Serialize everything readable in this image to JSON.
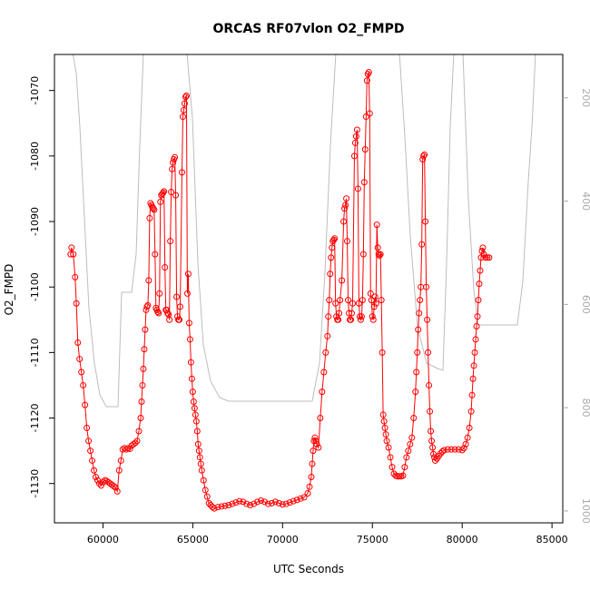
{
  "chart_data": {
    "type": "scatter",
    "title": "ORCAS RF07vlon O2_FMPD",
    "xlabel": "UTC Seconds",
    "ylabel": "O2_FMPD",
    "xlim": [
      57300,
      85600
    ],
    "ylim": [
      -1136,
      -1064.5
    ],
    "x_ticks": [
      60000,
      65000,
      70000,
      75000,
      80000,
      85000
    ],
    "x_tick_labels": [
      "60000",
      "65000",
      "70000",
      "75000",
      "80000",
      "85000"
    ],
    "y_ticks": [
      -1070,
      -1080,
      -1090,
      -1100,
      -1110,
      -1120,
      -1130
    ],
    "y_tick_labels": [
      "-1070",
      "-1080",
      "-1090",
      "-1100",
      "-1110",
      "-1120",
      "-1130"
    ],
    "right_axis": {
      "color": "#aaaaaa",
      "lim": [
        1023,
        116
      ],
      "ticks": [
        200,
        400,
        600,
        800,
        1000
      ],
      "tick_labels": [
        "200",
        "400",
        "600",
        "800",
        "1000"
      ]
    },
    "grid": false,
    "series": [
      {
        "color": "#ff0000",
        "marker": "open-circle",
        "connected": true,
        "points": [
          [
            58200,
            -1095
          ],
          [
            58250,
            -1094
          ],
          [
            58350,
            -1095
          ],
          [
            58450,
            -1098.5
          ],
          [
            58520,
            -1102.5
          ],
          [
            58600,
            -1108.5
          ],
          [
            58700,
            -1111
          ],
          [
            58800,
            -1113
          ],
          [
            58900,
            -1115
          ],
          [
            59000,
            -1118
          ],
          [
            59100,
            -1121.5
          ],
          [
            59200,
            -1123.5
          ],
          [
            59300,
            -1125
          ],
          [
            59400,
            -1126.5
          ],
          [
            59500,
            -1128
          ],
          [
            59600,
            -1129
          ],
          [
            59700,
            -1129.5
          ],
          [
            59800,
            -1130
          ],
          [
            59900,
            -1130.3
          ],
          [
            60000,
            -1129.8
          ],
          [
            60100,
            -1129.5
          ],
          [
            60200,
            -1129.6
          ],
          [
            60300,
            -1129.8
          ],
          [
            60400,
            -1130
          ],
          [
            60500,
            -1130.2
          ],
          [
            60600,
            -1130.4
          ],
          [
            60700,
            -1130.6
          ],
          [
            60800,
            -1131.2
          ],
          [
            60900,
            -1128
          ],
          [
            61000,
            -1126.5
          ],
          [
            61100,
            -1124.8
          ],
          [
            61200,
            -1124.6
          ],
          [
            61300,
            -1124.8
          ],
          [
            61400,
            -1124.6
          ],
          [
            61500,
            -1124.7
          ],
          [
            61600,
            -1124.2
          ],
          [
            61700,
            -1124
          ],
          [
            61800,
            -1123.8
          ],
          [
            61900,
            -1123.5
          ],
          [
            62000,
            -1122
          ],
          [
            62100,
            -1120
          ],
          [
            62150,
            -1117.5
          ],
          [
            62200,
            -1115
          ],
          [
            62250,
            -1112.5
          ],
          [
            62300,
            -1109.5
          ],
          [
            62350,
            -1106.5
          ],
          [
            62400,
            -1103.5
          ],
          [
            62450,
            -1103
          ],
          [
            62500,
            -1102.8
          ],
          [
            62550,
            -1099
          ],
          [
            62600,
            -1089.5
          ],
          [
            62650,
            -1087.2
          ],
          [
            62700,
            -1087.5
          ],
          [
            62750,
            -1087.8
          ],
          [
            62800,
            -1088
          ],
          [
            62850,
            -1088.2
          ],
          [
            62900,
            -1095
          ],
          [
            62950,
            -1103.2
          ],
          [
            63000,
            -1103.5
          ],
          [
            63050,
            -1103.8
          ],
          [
            63100,
            -1104
          ],
          [
            63150,
            -1101
          ],
          [
            63200,
            -1087
          ],
          [
            63250,
            -1086
          ],
          [
            63300,
            -1085.8
          ],
          [
            63350,
            -1085.6
          ],
          [
            63400,
            -1085.4
          ],
          [
            63450,
            -1097
          ],
          [
            63500,
            -1103.5
          ],
          [
            63550,
            -1103.5
          ],
          [
            63600,
            -1104
          ],
          [
            63650,
            -1104.2
          ],
          [
            63700,
            -1105
          ],
          [
            63750,
            -1093
          ],
          [
            63800,
            -1085.5
          ],
          [
            63850,
            -1082
          ],
          [
            63900,
            -1081
          ],
          [
            63950,
            -1080.5
          ],
          [
            64000,
            -1080.2
          ],
          [
            64050,
            -1086
          ],
          [
            64100,
            -1101.5
          ],
          [
            64150,
            -1104.5
          ],
          [
            64200,
            -1105
          ],
          [
            64250,
            -1105
          ],
          [
            64300,
            -1103
          ],
          [
            64400,
            -1082.5
          ],
          [
            64450,
            -1074
          ],
          [
            64500,
            -1073
          ],
          [
            64550,
            -1072
          ],
          [
            64600,
            -1071
          ],
          [
            64650,
            -1070.8
          ],
          [
            64700,
            -1101
          ],
          [
            64750,
            -1098
          ],
          [
            64800,
            -1105.5
          ],
          [
            64850,
            -1108
          ],
          [
            64900,
            -1111.5
          ],
          [
            64950,
            -1114
          ],
          [
            65000,
            -1116
          ],
          [
            65050,
            -1117.5
          ],
          [
            65100,
            -1118.5
          ],
          [
            65150,
            -1119.5
          ],
          [
            65200,
            -1120.5
          ],
          [
            65250,
            -1122
          ],
          [
            65300,
            -1124
          ],
          [
            65350,
            -1125
          ],
          [
            65400,
            -1126
          ],
          [
            65450,
            -1127
          ],
          [
            65500,
            -1128
          ],
          [
            65600,
            -1129.5
          ],
          [
            65700,
            -1131
          ],
          [
            65800,
            -1132
          ],
          [
            65900,
            -1133
          ],
          [
            66000,
            -1133.3
          ],
          [
            66100,
            -1133.6
          ],
          [
            66200,
            -1133.8
          ],
          [
            66400,
            -1133.6
          ],
          [
            66600,
            -1133.5
          ],
          [
            66800,
            -1133.4
          ],
          [
            67000,
            -1133.3
          ],
          [
            67200,
            -1133.1
          ],
          [
            67400,
            -1132.9
          ],
          [
            67600,
            -1132.7
          ],
          [
            67800,
            -1132.8
          ],
          [
            68000,
            -1133.1
          ],
          [
            68200,
            -1133.3
          ],
          [
            68400,
            -1133.1
          ],
          [
            68600,
            -1132.8
          ],
          [
            68800,
            -1132.6
          ],
          [
            69000,
            -1132.8
          ],
          [
            69200,
            -1133.1
          ],
          [
            69400,
            -1133
          ],
          [
            69600,
            -1132.8
          ],
          [
            69800,
            -1133
          ],
          [
            70000,
            -1133.2
          ],
          [
            70200,
            -1133.1
          ],
          [
            70400,
            -1132.9
          ],
          [
            70600,
            -1132.7
          ],
          [
            70800,
            -1132.5
          ],
          [
            71000,
            -1132.3
          ],
          [
            71200,
            -1132.1
          ],
          [
            71400,
            -1131.5
          ],
          [
            71500,
            -1130.5
          ],
          [
            71600,
            -1129
          ],
          [
            71650,
            -1127
          ],
          [
            71700,
            -1125
          ],
          [
            71750,
            -1123.5
          ],
          [
            71800,
            -1123
          ],
          [
            71850,
            -1123.5
          ],
          [
            71900,
            -1124
          ],
          [
            72000,
            -1124.5
          ],
          [
            72100,
            -1120
          ],
          [
            72200,
            -1116
          ],
          [
            72300,
            -1113
          ],
          [
            72400,
            -1110
          ],
          [
            72500,
            -1107.5
          ],
          [
            72550,
            -1104.5
          ],
          [
            72600,
            -1102
          ],
          [
            72650,
            -1098
          ],
          [
            72700,
            -1095.5
          ],
          [
            72750,
            -1094
          ],
          [
            72800,
            -1093
          ],
          [
            72850,
            -1092.8
          ],
          [
            72900,
            -1092.6
          ],
          [
            72950,
            -1102.5
          ],
          [
            73000,
            -1104.5
          ],
          [
            73050,
            -1105
          ],
          [
            73100,
            -1105
          ],
          [
            73150,
            -1104
          ],
          [
            73200,
            -1102
          ],
          [
            73300,
            -1099
          ],
          [
            73400,
            -1090
          ],
          [
            73450,
            -1088
          ],
          [
            73500,
            -1087.5
          ],
          [
            73550,
            -1086.5
          ],
          [
            73600,
            -1093
          ],
          [
            73650,
            -1102
          ],
          [
            73700,
            -1104
          ],
          [
            73750,
            -1105
          ],
          [
            73800,
            -1105
          ],
          [
            73850,
            -1104
          ],
          [
            73900,
            -1102.5
          ],
          [
            74000,
            -1080
          ],
          [
            74050,
            -1078
          ],
          [
            74100,
            -1077
          ],
          [
            74150,
            -1076
          ],
          [
            74200,
            -1085
          ],
          [
            74250,
            -1102.5
          ],
          [
            74300,
            -1104.5
          ],
          [
            74350,
            -1105
          ],
          [
            74400,
            -1104.5
          ],
          [
            74450,
            -1102
          ],
          [
            74500,
            -1095
          ],
          [
            74550,
            -1084
          ],
          [
            74600,
            -1079
          ],
          [
            74650,
            -1074
          ],
          [
            74700,
            -1068.5
          ],
          [
            74750,
            -1067.5
          ],
          [
            74800,
            -1067.2
          ],
          [
            74850,
            -1073.5
          ],
          [
            74900,
            -1101
          ],
          [
            74950,
            -1102
          ],
          [
            75000,
            -1104.5
          ],
          [
            75050,
            -1105
          ],
          [
            75100,
            -1103
          ],
          [
            75150,
            -1101.5
          ],
          [
            75200,
            -1102.5
          ],
          [
            75250,
            -1090.5
          ],
          [
            75300,
            -1094
          ],
          [
            75350,
            -1095
          ],
          [
            75400,
            -1095.2
          ],
          [
            75450,
            -1095
          ],
          [
            75500,
            -1102
          ],
          [
            75550,
            -1110
          ],
          [
            75600,
            -1119.5
          ],
          [
            75650,
            -1120.5
          ],
          [
            75700,
            -1121.5
          ],
          [
            75750,
            -1122.5
          ],
          [
            75800,
            -1123.5
          ],
          [
            75900,
            -1124.5
          ],
          [
            76000,
            -1126
          ],
          [
            76100,
            -1127.5
          ],
          [
            76200,
            -1128.5
          ],
          [
            76300,
            -1128.8
          ],
          [
            76400,
            -1128.9
          ],
          [
            76500,
            -1128.9
          ],
          [
            76600,
            -1128.9
          ],
          [
            76700,
            -1128.8
          ],
          [
            76800,
            -1127.5
          ],
          [
            76900,
            -1126
          ],
          [
            77000,
            -1125
          ],
          [
            77100,
            -1124
          ],
          [
            77200,
            -1123
          ],
          [
            77300,
            -1120
          ],
          [
            77400,
            -1116
          ],
          [
            77450,
            -1113
          ],
          [
            77500,
            -1110
          ],
          [
            77550,
            -1106.5
          ],
          [
            77600,
            -1104
          ],
          [
            77650,
            -1102
          ],
          [
            77700,
            -1100
          ],
          [
            77750,
            -1093.5
          ],
          [
            77800,
            -1080.5
          ],
          [
            77850,
            -1080
          ],
          [
            77900,
            -1079.8
          ],
          [
            77950,
            -1090
          ],
          [
            78000,
            -1100
          ],
          [
            78050,
            -1105
          ],
          [
            78100,
            -1110
          ],
          [
            78150,
            -1115
          ],
          [
            78200,
            -1119
          ],
          [
            78250,
            -1122
          ],
          [
            78300,
            -1123.5
          ],
          [
            78350,
            -1124.5
          ],
          [
            78400,
            -1125.5
          ],
          [
            78450,
            -1126
          ],
          [
            78500,
            -1126.5
          ],
          [
            78600,
            -1126.2
          ],
          [
            78700,
            -1125.8
          ],
          [
            78800,
            -1125.4
          ],
          [
            78900,
            -1125.1
          ],
          [
            79000,
            -1124.9
          ],
          [
            79200,
            -1124.8
          ],
          [
            79400,
            -1124.8
          ],
          [
            79600,
            -1124.8
          ],
          [
            79800,
            -1124.8
          ],
          [
            80000,
            -1124.9
          ],
          [
            80100,
            -1124.6
          ],
          [
            80200,
            -1124
          ],
          [
            80300,
            -1123
          ],
          [
            80400,
            -1121.5
          ],
          [
            80500,
            -1119
          ],
          [
            80550,
            -1116.5
          ],
          [
            80600,
            -1114
          ],
          [
            80650,
            -1112
          ],
          [
            80700,
            -1110
          ],
          [
            80750,
            -1108
          ],
          [
            80800,
            -1106
          ],
          [
            80850,
            -1104.5
          ],
          [
            80900,
            -1102
          ],
          [
            80950,
            -1099.5
          ],
          [
            81000,
            -1097.5
          ],
          [
            81050,
            -1095.5
          ],
          [
            81100,
            -1094.5
          ],
          [
            81150,
            -1094
          ],
          [
            81200,
            -1095
          ],
          [
            81300,
            -1095.5
          ],
          [
            81400,
            -1095.5
          ],
          [
            81500,
            -1095.5
          ]
        ]
      }
    ]
  }
}
